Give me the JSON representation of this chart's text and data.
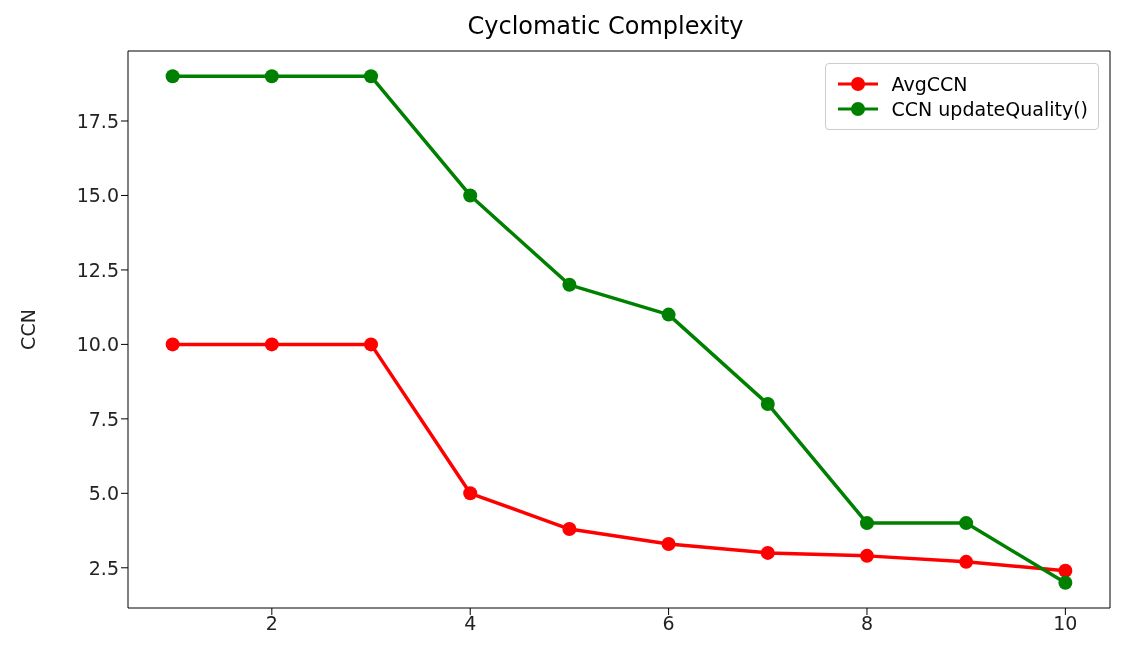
{
  "chart_data": {
    "type": "line",
    "title": "Cyclomatic Complexity",
    "ylabel": "CCN",
    "x": [
      1,
      2,
      3,
      4,
      5,
      6,
      7,
      8,
      9,
      10
    ],
    "series": [
      {
        "name": "AvgCCN",
        "color": "#ff0000",
        "values": [
          10,
          10,
          10,
          5,
          3.8,
          3.3,
          3.0,
          2.9,
          2.7,
          2.4
        ]
      },
      {
        "name": "CCN updateQuality()",
        "color": "#008000",
        "values": [
          19,
          19,
          19,
          15,
          12,
          11,
          8,
          4,
          4,
          2
        ]
      }
    ],
    "xlim": [
      0.55,
      10.45
    ],
    "xticks": [
      2,
      4,
      6,
      8,
      10
    ],
    "ylim": [
      1.15,
      19.85
    ],
    "yticks": [
      {
        "value": 2.5,
        "label": "2.5"
      },
      {
        "value": 5,
        "label": "5.0"
      },
      {
        "value": 7.5,
        "label": "7.5"
      },
      {
        "value": 10,
        "label": "10.0"
      },
      {
        "value": 12.5,
        "label": "12.5"
      },
      {
        "value": 15,
        "label": "15.0"
      },
      {
        "value": 17.5,
        "label": "17.5"
      }
    ],
    "grid": false,
    "legend": "top right",
    "marker": "circle",
    "line_style": "solid"
  }
}
